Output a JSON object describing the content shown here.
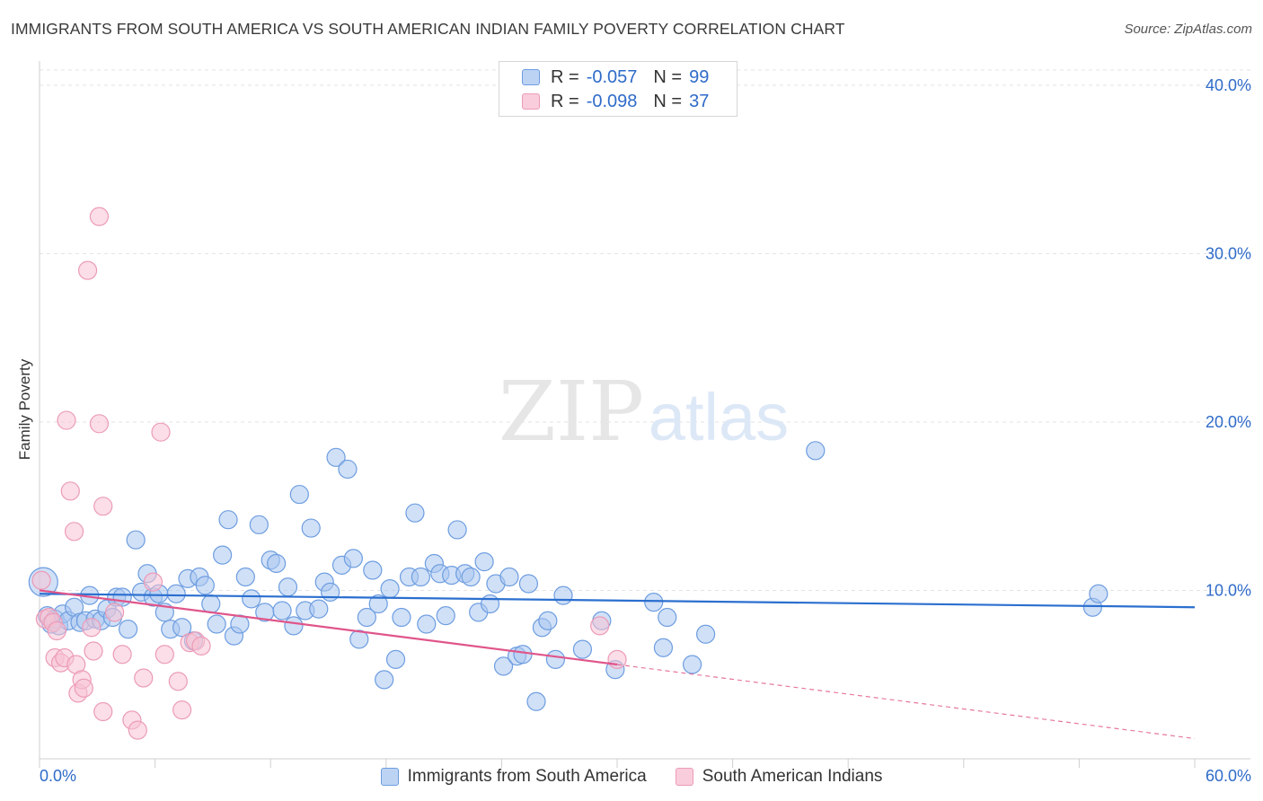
{
  "title": "IMMIGRANTS FROM SOUTH AMERICA VS SOUTH AMERICAN INDIAN FAMILY POVERTY CORRELATION CHART",
  "source": "Source: ZipAtlas.com",
  "watermark": {
    "zip": "ZIP",
    "atlas": "atlas"
  },
  "legend": {
    "rows": [
      {
        "r_label": "R =",
        "r_value": "-0.057",
        "n_label": "N =",
        "n_value": "99"
      },
      {
        "r_label": "R =",
        "r_value": "-0.098",
        "n_label": "N =",
        "n_value": "37"
      }
    ]
  },
  "chart_data": {
    "type": "scatter",
    "ylabel": "Family Poverty",
    "xlim": [
      0,
      60
    ],
    "ylim": [
      0,
      40
    ],
    "x_tick_labels": [
      {
        "value": 0,
        "label": "0.0%"
      },
      {
        "value": 60,
        "label": "60.0%"
      }
    ],
    "y_tick_labels": [
      {
        "value": 10,
        "label": "10.0%"
      },
      {
        "value": 20,
        "label": "20.0%"
      },
      {
        "value": 30,
        "label": "30.0%"
      },
      {
        "value": 40,
        "label": "40.0%"
      }
    ],
    "grid": true,
    "legend_position": "bottom",
    "series": [
      {
        "name": "Immigrants from South America",
        "color": "#7aa7e6",
        "fill": "#a9c6f0",
        "stroke": "#6d9de0",
        "trend_color": "#2b6fcf",
        "trend": {
          "x": [
            0,
            60
          ],
          "y": [
            9.8,
            9.0
          ]
        },
        "points": [
          [
            0.2,
            10.5,
            16
          ],
          [
            0.4,
            8.5,
            10
          ],
          [
            0.6,
            8.0,
            10
          ],
          [
            0.8,
            8.3,
            10
          ],
          [
            1.0,
            7.9,
            10
          ],
          [
            1.2,
            8.6,
            10
          ],
          [
            1.5,
            8.2,
            10
          ],
          [
            1.8,
            9.0,
            10
          ],
          [
            2.1,
            8.1,
            10
          ],
          [
            2.4,
            8.2,
            10
          ],
          [
            2.6,
            9.7,
            10
          ],
          [
            2.9,
            8.3,
            10
          ],
          [
            3.2,
            8.2,
            10
          ],
          [
            3.5,
            8.9,
            10
          ],
          [
            3.8,
            8.4,
            10
          ],
          [
            4.0,
            9.6,
            10
          ],
          [
            4.3,
            9.6,
            10
          ],
          [
            4.6,
            7.7,
            10
          ],
          [
            5.0,
            13.0,
            10
          ],
          [
            5.3,
            9.9,
            10
          ],
          [
            5.6,
            11.0,
            10
          ],
          [
            5.9,
            9.6,
            10
          ],
          [
            6.2,
            9.8,
            10
          ],
          [
            6.5,
            8.7,
            10
          ],
          [
            6.8,
            7.7,
            10
          ],
          [
            7.1,
            9.8,
            10
          ],
          [
            7.4,
            7.8,
            10
          ],
          [
            7.7,
            10.7,
            10
          ],
          [
            8.0,
            7.0,
            10
          ],
          [
            8.3,
            10.8,
            10
          ],
          [
            8.6,
            10.3,
            10
          ],
          [
            8.9,
            9.2,
            10
          ],
          [
            9.2,
            8.0,
            10
          ],
          [
            9.5,
            12.1,
            10
          ],
          [
            9.8,
            14.2,
            10
          ],
          [
            10.1,
            7.3,
            10
          ],
          [
            10.4,
            8.0,
            10
          ],
          [
            10.7,
            10.8,
            10
          ],
          [
            11.0,
            9.5,
            10
          ],
          [
            11.4,
            13.9,
            10
          ],
          [
            11.7,
            8.7,
            10
          ],
          [
            12.0,
            11.8,
            10
          ],
          [
            12.3,
            11.6,
            10
          ],
          [
            12.6,
            8.8,
            10
          ],
          [
            12.9,
            10.2,
            10
          ],
          [
            13.2,
            7.9,
            10
          ],
          [
            13.5,
            15.7,
            10
          ],
          [
            13.8,
            8.8,
            10
          ],
          [
            14.1,
            13.7,
            10
          ],
          [
            14.5,
            8.9,
            10
          ],
          [
            14.8,
            10.5,
            10
          ],
          [
            15.1,
            9.9,
            10
          ],
          [
            15.4,
            17.9,
            10
          ],
          [
            15.7,
            11.5,
            10
          ],
          [
            16.0,
            17.2,
            10
          ],
          [
            16.3,
            11.9,
            10
          ],
          [
            16.6,
            7.1,
            10
          ],
          [
            17.0,
            8.4,
            10
          ],
          [
            17.3,
            11.2,
            10
          ],
          [
            17.6,
            9.2,
            10
          ],
          [
            17.9,
            4.7,
            10
          ],
          [
            18.2,
            10.1,
            10
          ],
          [
            18.5,
            5.9,
            10
          ],
          [
            18.8,
            8.4,
            10
          ],
          [
            19.2,
            10.8,
            10
          ],
          [
            19.5,
            14.6,
            10
          ],
          [
            19.8,
            10.8,
            10
          ],
          [
            20.1,
            8.0,
            10
          ],
          [
            20.5,
            11.6,
            10
          ],
          [
            20.8,
            11.0,
            10
          ],
          [
            21.1,
            8.5,
            10
          ],
          [
            21.4,
            10.9,
            10
          ],
          [
            21.7,
            13.6,
            10
          ],
          [
            22.1,
            11.0,
            10
          ],
          [
            22.4,
            10.8,
            10
          ],
          [
            22.8,
            8.7,
            10
          ],
          [
            23.1,
            11.7,
            10
          ],
          [
            23.4,
            9.2,
            10
          ],
          [
            23.7,
            10.4,
            10
          ],
          [
            24.1,
            5.5,
            10
          ],
          [
            24.4,
            10.8,
            10
          ],
          [
            24.8,
            6.1,
            10
          ],
          [
            25.1,
            6.2,
            10
          ],
          [
            25.4,
            10.4,
            10
          ],
          [
            25.8,
            3.4,
            10
          ],
          [
            26.1,
            7.8,
            10
          ],
          [
            26.4,
            8.2,
            10
          ],
          [
            26.8,
            5.9,
            10
          ],
          [
            27.2,
            9.7,
            10
          ],
          [
            28.2,
            6.5,
            10
          ],
          [
            29.2,
            8.2,
            10
          ],
          [
            29.9,
            5.3,
            10
          ],
          [
            31.9,
            9.3,
            10
          ],
          [
            32.4,
            6.6,
            10
          ],
          [
            32.6,
            8.4,
            10
          ],
          [
            33.9,
            5.6,
            10
          ],
          [
            34.6,
            7.4,
            10
          ],
          [
            40.3,
            18.3,
            10
          ],
          [
            54.7,
            9.0,
            10
          ],
          [
            55.0,
            9.8,
            10
          ]
        ]
      },
      {
        "name": "South American Indians",
        "color": "#f2a5bf",
        "fill": "#f7c3d4",
        "stroke": "#ec9bb7",
        "trend_color": "#e0558a",
        "trend": {
          "x": [
            0,
            30
          ],
          "y": [
            10.0,
            5.6
          ]
        },
        "trend_extended": {
          "x": [
            30,
            60
          ],
          "y": [
            5.6,
            1.2
          ]
        },
        "points": [
          [
            0.1,
            10.6,
            10
          ],
          [
            0.3,
            8.3,
            10
          ],
          [
            0.5,
            8.4,
            10
          ],
          [
            0.7,
            8.1,
            10
          ],
          [
            0.8,
            6.0,
            10
          ],
          [
            0.9,
            7.6,
            10
          ],
          [
            1.1,
            5.7,
            10
          ],
          [
            1.3,
            6.0,
            10
          ],
          [
            1.4,
            20.1,
            10
          ],
          [
            1.6,
            15.9,
            10
          ],
          [
            1.8,
            13.5,
            10
          ],
          [
            1.9,
            5.6,
            10
          ],
          [
            2.0,
            3.9,
            10
          ],
          [
            2.2,
            4.7,
            10
          ],
          [
            2.3,
            4.2,
            10
          ],
          [
            2.5,
            29.0,
            10
          ],
          [
            2.7,
            7.8,
            10
          ],
          [
            2.8,
            6.4,
            10
          ],
          [
            3.1,
            19.9,
            10
          ],
          [
            3.1,
            32.2,
            10
          ],
          [
            3.3,
            15.0,
            10
          ],
          [
            3.3,
            2.8,
            10
          ],
          [
            3.9,
            8.7,
            10
          ],
          [
            4.3,
            6.2,
            10
          ],
          [
            4.8,
            2.3,
            10
          ],
          [
            5.1,
            1.7,
            10
          ],
          [
            5.4,
            4.8,
            10
          ],
          [
            5.9,
            10.5,
            10
          ],
          [
            6.3,
            19.4,
            10
          ],
          [
            6.5,
            6.2,
            10
          ],
          [
            7.2,
            4.6,
            10
          ],
          [
            7.4,
            2.9,
            10
          ],
          [
            7.8,
            6.9,
            10
          ],
          [
            8.1,
            7.0,
            10
          ],
          [
            8.4,
            6.7,
            10
          ],
          [
            29.1,
            7.9,
            10
          ],
          [
            30.0,
            5.9,
            10
          ]
        ]
      }
    ]
  }
}
